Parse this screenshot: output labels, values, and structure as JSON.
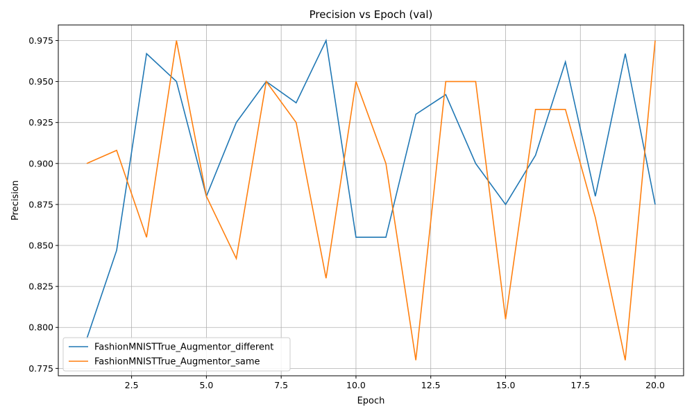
{
  "chart_data": {
    "type": "line",
    "title": "Precision vs Epoch (val)",
    "xlabel": "Epoch",
    "ylabel": "Precision",
    "xlim": [
      0.05,
      20.95
    ],
    "ylim": [
      0.7705,
      0.9845
    ],
    "x_ticks": [
      2.5,
      5.0,
      7.5,
      10.0,
      12.5,
      15.0,
      17.5,
      20.0
    ],
    "x_tick_labels": [
      "2.5",
      "5.0",
      "7.5",
      "10.0",
      "12.5",
      "15.0",
      "17.5",
      "20.0"
    ],
    "y_ticks": [
      0.775,
      0.8,
      0.825,
      0.85,
      0.875,
      0.9,
      0.925,
      0.95,
      0.975
    ],
    "y_tick_labels": [
      "0.775",
      "0.800",
      "0.825",
      "0.850",
      "0.875",
      "0.900",
      "0.925",
      "0.950",
      "0.975"
    ],
    "grid": true,
    "legend_position": "lower-left",
    "x": [
      1,
      2,
      3,
      4,
      5,
      6,
      7,
      8,
      9,
      10,
      11,
      12,
      13,
      14,
      15,
      16,
      17,
      18,
      19,
      20
    ],
    "series": [
      {
        "name": "FashionMNISTTrue_Augmentor_different",
        "color": "#1f77b4",
        "values": [
          0.793,
          0.847,
          0.967,
          0.95,
          0.88,
          0.925,
          0.95,
          0.937,
          0.975,
          0.855,
          0.855,
          0.93,
          0.942,
          0.9,
          0.875,
          0.905,
          0.962,
          0.88,
          0.967,
          0.875
        ]
      },
      {
        "name": "FashionMNISTTrue_Augmentor_same",
        "color": "#ff7f0e",
        "values": [
          0.9,
          0.908,
          0.855,
          0.975,
          0.88,
          0.842,
          0.95,
          0.925,
          0.83,
          0.95,
          0.9,
          0.78,
          0.95,
          0.95,
          0.805,
          0.933,
          0.933,
          0.867,
          0.78,
          0.975
        ]
      }
    ]
  }
}
